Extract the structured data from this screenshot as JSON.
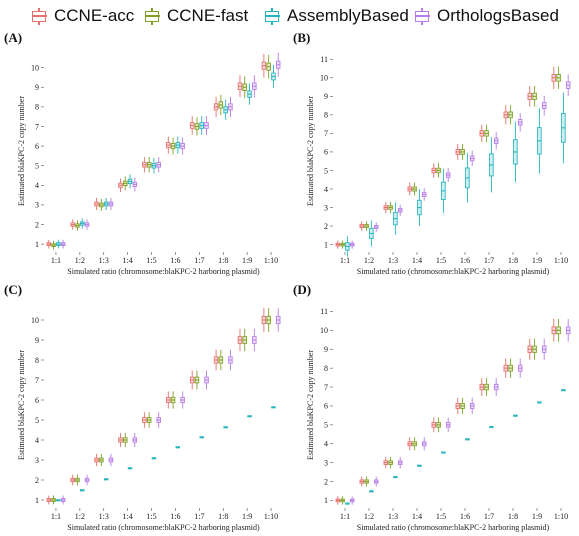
{
  "legend": [
    {
      "name": "CCNE-acc",
      "color": "#E8706E"
    },
    {
      "name": "CCNE-fast",
      "color": "#7FA021"
    },
    {
      "name": "AssemblyBased",
      "color": "#26B4BE"
    },
    {
      "name": "OrthologsBased",
      "color": "#B77EE8"
    }
  ],
  "chart_data": [
    {
      "type": "box",
      "panel": "(A)",
      "xlabel": "Simulated ratio (chromosome:blaKPC-2 harboring plasmid)",
      "ylabel": "Estimated blaKPC-2 copy number",
      "categories": [
        "1:1",
        "1:2",
        "1:3",
        "1:4",
        "1:5",
        "1:6",
        "1:7",
        "1:8",
        "1:9",
        "1:10"
      ],
      "ylim": [
        0.6,
        10.9
      ],
      "yticks": [
        1,
        2,
        3,
        4,
        5,
        6,
        7,
        8,
        9,
        10
      ],
      "series": [
        {
          "name": "CCNE-acc",
          "values": [
            1.0,
            2.0,
            3.05,
            4.0,
            5.05,
            6.05,
            7.05,
            8.0,
            9.05,
            10.1
          ]
        },
        {
          "name": "CCNE-fast",
          "values": [
            0.95,
            1.95,
            3.0,
            4.1,
            5.05,
            6.0,
            7.0,
            8.1,
            9.0,
            10.05
          ]
        },
        {
          "name": "AssemblyBased",
          "values": [
            1.0,
            2.05,
            3.05,
            4.2,
            5.0,
            6.05,
            7.05,
            7.85,
            8.65,
            9.55
          ]
        },
        {
          "name": "OrthologsBased",
          "values": [
            1.0,
            2.0,
            3.05,
            4.05,
            5.05,
            6.0,
            7.05,
            8.0,
            9.05,
            10.15
          ]
        }
      ]
    },
    {
      "type": "box",
      "panel": "(B)",
      "xlabel": "Simulated ratio (chromosome:blaKPC-2 harboring plasmid)",
      "ylabel": "Estimated blaKPC-2 copy number",
      "categories": [
        "1:1",
        "1:2",
        "1:3",
        "1:4",
        "1:5",
        "1:6",
        "1:7",
        "1:8",
        "1:9",
        "1:10"
      ],
      "ylim": [
        0.6,
        11.5
      ],
      "yticks": [
        1,
        2,
        3,
        4,
        5,
        6,
        7,
        8,
        9,
        10,
        11
      ],
      "series": [
        {
          "name": "CCNE-acc",
          "values": [
            1.0,
            2.0,
            3.0,
            4.0,
            5.0,
            6.0,
            7.0,
            8.0,
            9.0,
            10.0
          ]
        },
        {
          "name": "CCNE-fast",
          "values": [
            1.0,
            2.0,
            3.0,
            4.0,
            5.0,
            6.0,
            7.0,
            8.0,
            9.0,
            10.0
          ]
        },
        {
          "name": "AssemblyBased",
          "values": [
            0.9,
            1.6,
            2.4,
            3.0,
            3.9,
            4.6,
            5.3,
            6.0,
            6.6,
            7.3
          ]
        },
        {
          "name": "OrthologsBased",
          "values": [
            1.0,
            1.95,
            2.85,
            3.7,
            4.75,
            5.65,
            6.6,
            7.6,
            8.5,
            9.6
          ]
        }
      ]
    },
    {
      "type": "box",
      "panel": "(C)",
      "xlabel": "Simulated ratio (chromosome:blaKPC-2 harboring plasmid)",
      "ylabel": "Estimated blaKPC-2 copy number",
      "categories": [
        "1:1",
        "1:2",
        "1:3",
        "1:4",
        "1:5",
        "1:6",
        "1:7",
        "1:8",
        "1:9",
        "1:10"
      ],
      "ylim": [
        0.6,
        10.9
      ],
      "yticks": [
        1,
        2,
        3,
        4,
        5,
        6,
        7,
        8,
        9,
        10
      ],
      "series": [
        {
          "name": "CCNE-acc",
          "values": [
            1.0,
            2.0,
            3.0,
            4.0,
            5.0,
            6.0,
            7.0,
            8.0,
            9.0,
            10.0
          ]
        },
        {
          "name": "CCNE-fast",
          "values": [
            1.0,
            2.0,
            3.0,
            4.0,
            5.0,
            6.0,
            7.0,
            8.0,
            9.0,
            10.0
          ]
        },
        {
          "name": "AssemblyBased",
          "values": [
            1.0,
            1.5,
            2.05,
            2.6,
            3.1,
            3.65,
            4.15,
            4.65,
            5.2,
            5.65
          ]
        },
        {
          "name": "OrthologsBased",
          "values": [
            1.0,
            2.0,
            3.0,
            4.0,
            5.0,
            6.0,
            7.0,
            8.0,
            9.0,
            10.0
          ]
        }
      ]
    },
    {
      "type": "box",
      "panel": "(D)",
      "xlabel": "Simulated ratio (chromosome:blaKPC-2 harboring plasmid)",
      "ylabel": "Estimated blaKPC-2 copy number",
      "categories": [
        "1:1",
        "1:2",
        "1:3",
        "1:4",
        "1:5",
        "1:6",
        "1:7",
        "1:8",
        "1:9",
        "1:10"
      ],
      "ylim": [
        0.6,
        11.5
      ],
      "yticks": [
        1,
        2,
        3,
        4,
        5,
        6,
        7,
        8,
        9,
        10,
        11
      ],
      "series": [
        {
          "name": "CCNE-acc",
          "values": [
            1.0,
            2.0,
            3.0,
            4.0,
            5.0,
            6.0,
            7.0,
            8.0,
            9.0,
            10.0
          ]
        },
        {
          "name": "CCNE-fast",
          "values": [
            1.0,
            2.0,
            3.0,
            4.0,
            5.0,
            6.0,
            7.0,
            8.0,
            9.0,
            10.0
          ]
        },
        {
          "name": "AssemblyBased",
          "values": [
            0.85,
            1.5,
            2.25,
            2.85,
            3.55,
            4.25,
            4.9,
            5.5,
            6.2,
            6.85
          ]
        },
        {
          "name": "OrthologsBased",
          "values": [
            1.0,
            2.0,
            3.0,
            4.0,
            5.0,
            6.0,
            7.0,
            8.0,
            9.0,
            10.0
          ]
        }
      ]
    }
  ]
}
